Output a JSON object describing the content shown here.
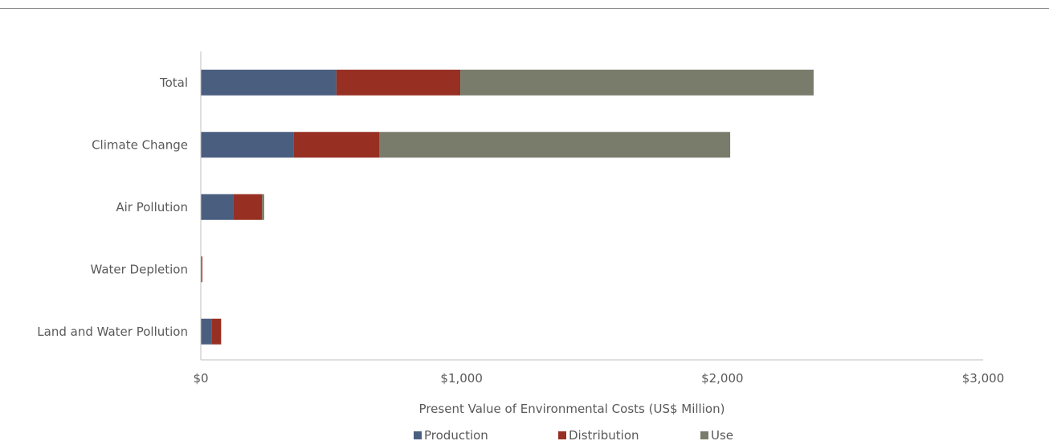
{
  "chart_data": {
    "type": "bar",
    "orientation": "horizontal",
    "stacked": true,
    "categories": [
      "Total",
      "Climate Change",
      "Air Pollution",
      "Water Depletion",
      "Land and Water Pollution"
    ],
    "series": [
      {
        "name": "Production",
        "color": "#4a5e80",
        "values": [
          520,
          355,
          125,
          2,
          42
        ]
      },
      {
        "name": "Distribution",
        "color": "#973023",
        "values": [
          475,
          330,
          110,
          4,
          36
        ]
      },
      {
        "name": "Use",
        "color": "#797c6b",
        "values": [
          1355,
          1345,
          8,
          0,
          0
        ]
      }
    ],
    "xlabel": "Present Value of Environmental Costs (US$ Million)",
    "ylabel": "",
    "xlim": [
      0,
      3000
    ],
    "xticks": [
      0,
      1000,
      2000,
      3000
    ],
    "xtick_labels": [
      "$0",
      "$1,000",
      "$2,000",
      "$3,000"
    ],
    "grid": false,
    "legend_position": "bottom"
  }
}
